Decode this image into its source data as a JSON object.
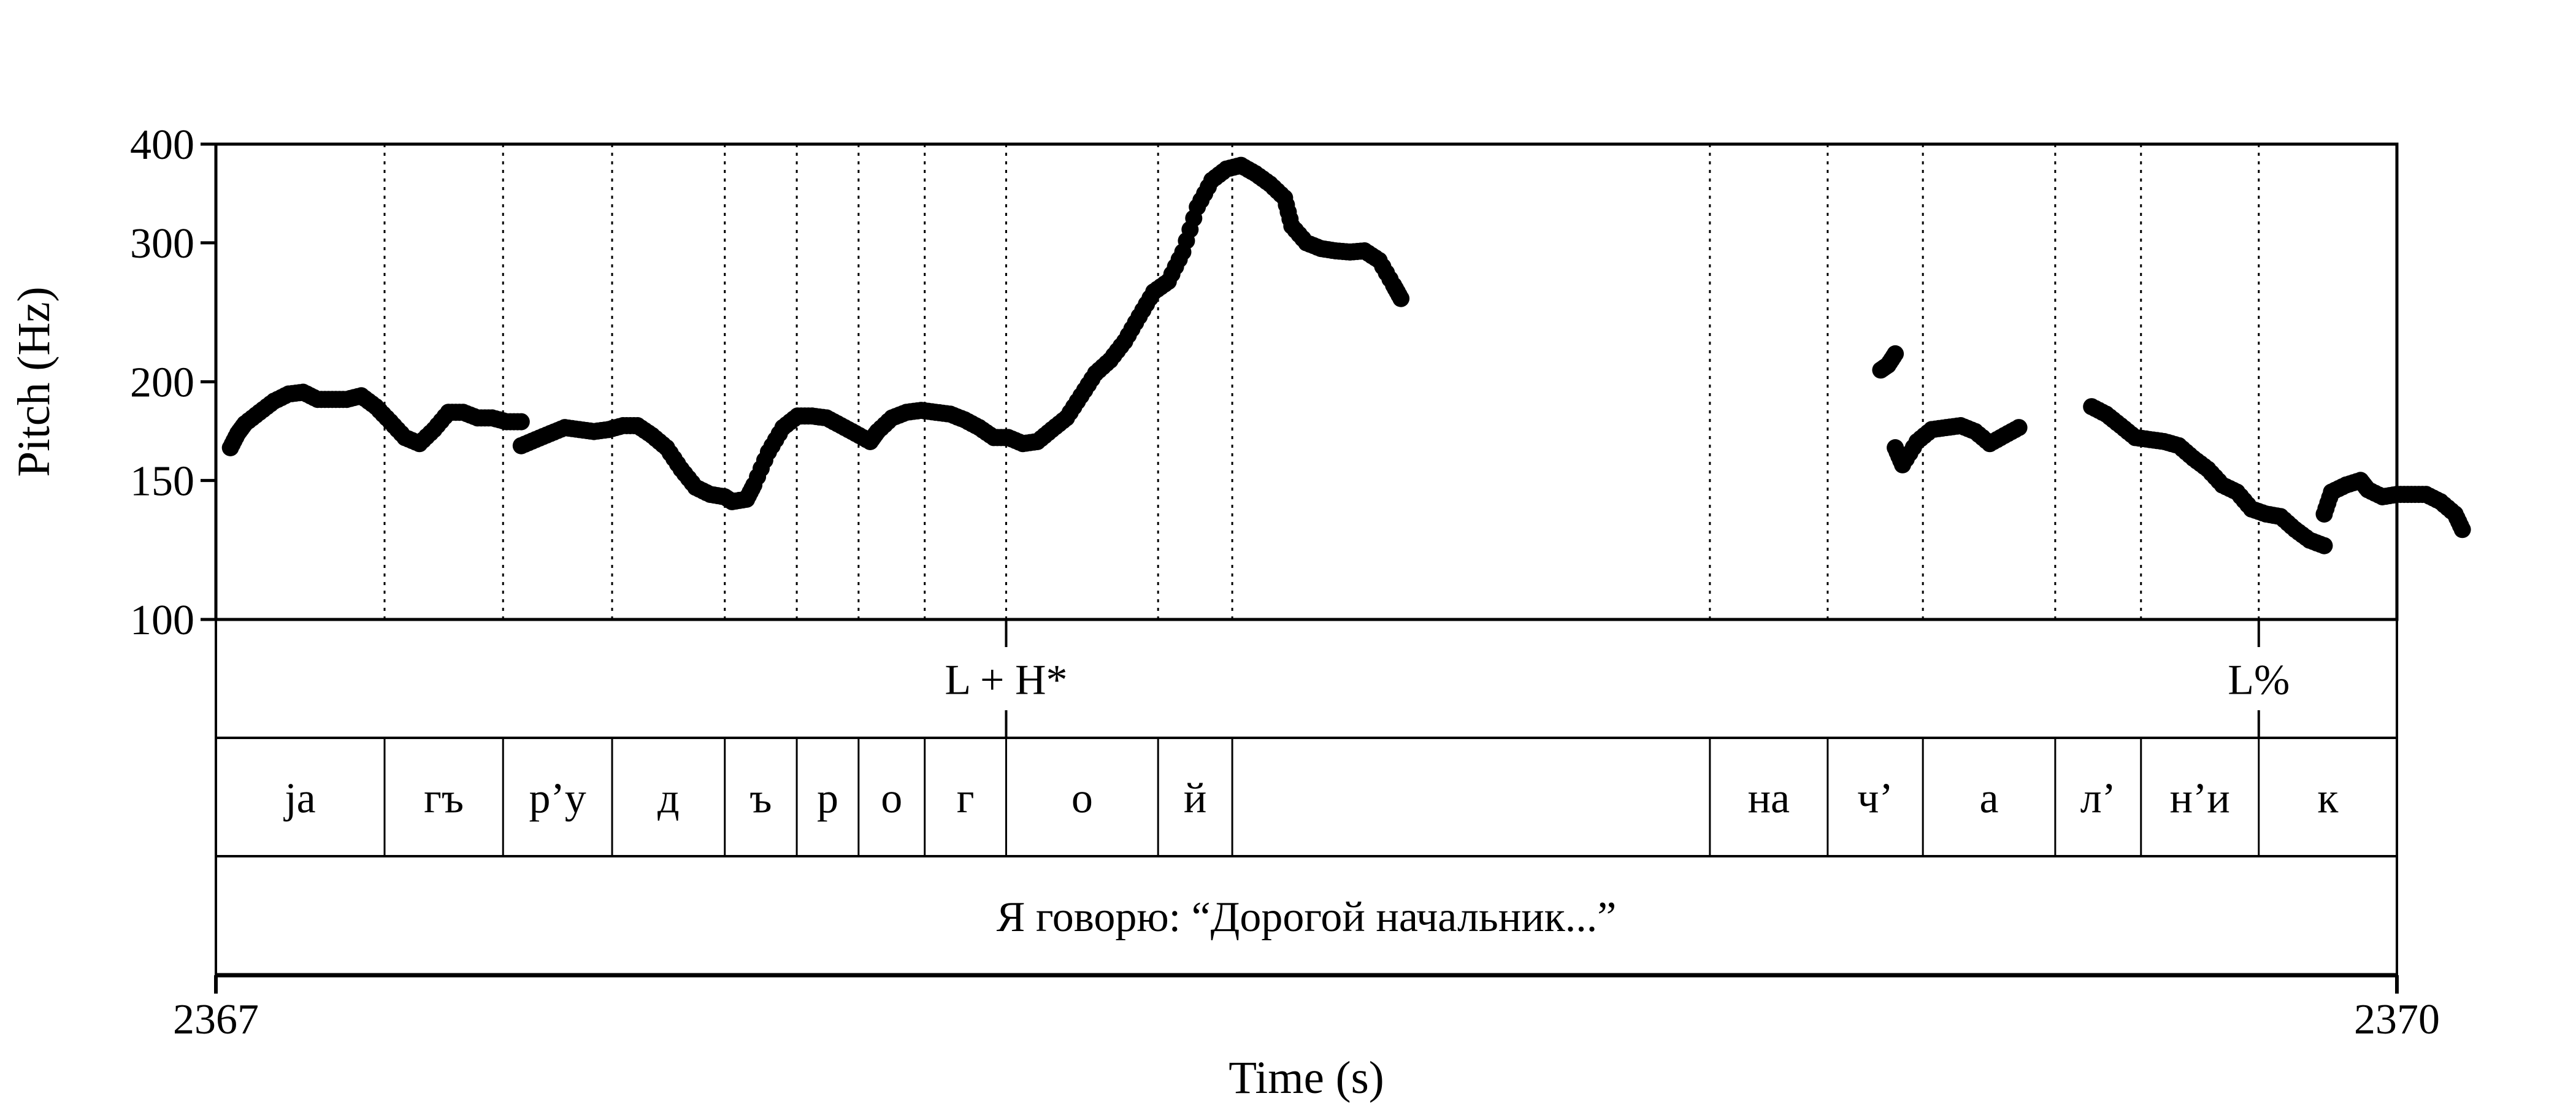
{
  "chart_data": {
    "type": "scatter",
    "title": "",
    "xlabel": "Time (s)",
    "ylabel": "Pitch (Hz)",
    "xlim": [
      2367,
      2370
    ],
    "ylim": [
      100,
      400
    ],
    "yscale": "log",
    "yticks": [
      100,
      150,
      200,
      300,
      400
    ],
    "ytick_labels": [
      "100",
      "150",
      "200",
      "300",
      "400"
    ],
    "xtick_labels": [
      "2367",
      "2370"
    ],
    "grid": false,
    "pitch_segments": [
      [
        [
          2367.02,
          165
        ],
        [
          2367.03,
          172
        ],
        [
          2367.04,
          177
        ],
        [
          2367.06,
          183
        ],
        [
          2367.08,
          189
        ],
        [
          2367.1,
          193
        ],
        [
          2367.12,
          194
        ],
        [
          2367.14,
          190
        ],
        [
          2367.16,
          190
        ],
        [
          2367.18,
          190
        ],
        [
          2367.2,
          192
        ],
        [
          2367.22,
          186
        ],
        [
          2367.24,
          178
        ],
        [
          2367.26,
          170
        ],
        [
          2367.28,
          167
        ],
        [
          2367.3,
          174
        ],
        [
          2367.32,
          183
        ],
        [
          2367.34,
          183
        ],
        [
          2367.36,
          180
        ],
        [
          2367.38,
          180
        ],
        [
          2367.4,
          178
        ],
        [
          2367.42,
          178
        ]
      ],
      [
        [
          2367.42,
          166
        ],
        [
          2367.44,
          169
        ],
        [
          2367.46,
          172
        ],
        [
          2367.48,
          175
        ],
        [
          2367.5,
          174
        ],
        [
          2367.52,
          173
        ],
        [
          2367.54,
          174
        ],
        [
          2367.56,
          176
        ],
        [
          2367.58,
          176
        ],
        [
          2367.6,
          171
        ],
        [
          2367.62,
          165
        ],
        [
          2367.64,
          155
        ],
        [
          2367.66,
          147
        ],
        [
          2367.68,
          144
        ],
        [
          2367.7,
          143
        ],
        [
          2367.71,
          141
        ],
        [
          2367.73,
          142
        ],
        [
          2367.74,
          148
        ],
        [
          2367.76,
          163
        ],
        [
          2367.78,
          175
        ],
        [
          2367.8,
          181
        ],
        [
          2367.82,
          181
        ],
        [
          2367.84,
          180
        ],
        [
          2367.86,
          176
        ],
        [
          2367.88,
          172
        ],
        [
          2367.9,
          168
        ],
        [
          2367.91,
          173
        ],
        [
          2367.93,
          180
        ],
        [
          2367.95,
          183
        ],
        [
          2367.97,
          184
        ],
        [
          2367.99,
          183
        ],
        [
          2368.01,
          182
        ],
        [
          2368.03,
          179
        ],
        [
          2368.05,
          175
        ],
        [
          2368.07,
          170
        ],
        [
          2368.09,
          170
        ],
        [
          2368.11,
          167
        ],
        [
          2368.13,
          168
        ],
        [
          2368.15,
          174
        ],
        [
          2368.17,
          180
        ],
        [
          2368.19,
          192
        ],
        [
          2368.21,
          205
        ],
        [
          2368.23,
          213
        ],
        [
          2368.25,
          225
        ],
        [
          2368.27,
          242
        ],
        [
          2368.29,
          260
        ],
        [
          2368.31,
          268
        ],
        [
          2368.33,
          292
        ],
        [
          2368.35,
          333
        ],
        [
          2368.37,
          360
        ],
        [
          2368.39,
          372
        ],
        [
          2368.41,
          376
        ],
        [
          2368.43,
          367
        ],
        [
          2368.45,
          356
        ],
        [
          2368.47,
          342
        ],
        [
          2368.48,
          315
        ],
        [
          2368.5,
          300
        ],
        [
          2368.52,
          295
        ],
        [
          2368.54,
          293
        ],
        [
          2368.56,
          292
        ],
        [
          2368.58,
          293
        ],
        [
          2368.6,
          285
        ],
        [
          2368.62,
          265
        ],
        [
          2368.63,
          255
        ]
      ],
      [
        [
          2369.29,
          207
        ],
        [
          2369.3,
          210
        ],
        [
          2369.31,
          217
        ]
      ],
      [
        [
          2369.31,
          165
        ],
        [
          2369.32,
          157
        ],
        [
          2369.34,
          168
        ],
        [
          2369.36,
          174
        ],
        [
          2369.38,
          175
        ],
        [
          2369.4,
          176
        ],
        [
          2369.42,
          173
        ],
        [
          2369.44,
          167
        ],
        [
          2369.46,
          171
        ],
        [
          2369.48,
          175
        ]
      ],
      [
        [
          2369.58,
          186
        ],
        [
          2369.6,
          182
        ],
        [
          2369.62,
          176
        ],
        [
          2369.64,
          170
        ],
        [
          2369.66,
          169
        ],
        [
          2369.68,
          168
        ],
        [
          2369.7,
          166
        ],
        [
          2369.72,
          160
        ],
        [
          2369.74,
          155
        ],
        [
          2369.76,
          148
        ],
        [
          2369.78,
          145
        ],
        [
          2369.8,
          138
        ],
        [
          2369.82,
          136
        ],
        [
          2369.84,
          135
        ],
        [
          2369.86,
          130
        ],
        [
          2369.88,
          126
        ],
        [
          2369.9,
          124
        ]
      ],
      [
        [
          2369.9,
          136
        ],
        [
          2369.91,
          145
        ],
        [
          2369.93,
          148
        ],
        [
          2369.95,
          150
        ],
        [
          2369.96,
          146
        ],
        [
          2369.98,
          143
        ],
        [
          2370.0,
          144
        ],
        [
          2370.02,
          144
        ],
        [
          2370.04,
          144
        ],
        [
          2370.06,
          141
        ],
        [
          2370.08,
          136
        ],
        [
          2370.09,
          130
        ]
      ]
    ],
    "boundaries": [
      2367.232,
      2367.395,
      2367.545,
      2367.7,
      2367.799,
      2367.884,
      2367.975,
      2368.087,
      2368.296,
      2368.398,
      2369.055,
      2369.217,
      2369.348,
      2369.53,
      2369.648,
      2369.81
    ],
    "tiers": [
      {
        "name": "tones",
        "labels": [
          {
            "text": "L + H*",
            "time": 2368.087
          },
          {
            "text": "L%",
            "time": 2369.81
          }
        ]
      },
      {
        "name": "segments",
        "labels": [
          {
            "text": "ja",
            "start": 2367.0,
            "end": 2367.232
          },
          {
            "text": "гъ",
            "start": 2367.232,
            "end": 2367.395
          },
          {
            "text": "р’у",
            "start": 2367.395,
            "end": 2367.545
          },
          {
            "text": "д",
            "start": 2367.545,
            "end": 2367.7
          },
          {
            "text": "ъ",
            "start": 2367.7,
            "end": 2367.799
          },
          {
            "text": "р",
            "start": 2367.799,
            "end": 2367.884
          },
          {
            "text": "о",
            "start": 2367.884,
            "end": 2367.975
          },
          {
            "text": "г",
            "start": 2367.975,
            "end": 2368.087
          },
          {
            "text": "о",
            "start": 2368.087,
            "end": 2368.296
          },
          {
            "text": "й",
            "start": 2368.296,
            "end": 2368.398
          },
          {
            "text": "",
            "start": 2368.398,
            "end": 2369.055
          },
          {
            "text": "на",
            "start": 2369.055,
            "end": 2369.217
          },
          {
            "text": "ч’",
            "start": 2369.217,
            "end": 2369.348
          },
          {
            "text": "а",
            "start": 2369.348,
            "end": 2369.53
          },
          {
            "text": "л’",
            "start": 2369.53,
            "end": 2369.648
          },
          {
            "text": "н’и",
            "start": 2369.648,
            "end": 2369.81
          },
          {
            "text": "к",
            "start": 2369.81,
            "end": 2370.0
          }
        ]
      },
      {
        "name": "sentence",
        "labels": [
          {
            "text": "Я говорю: “Дорогой начальник...”",
            "start": 2367.0,
            "end": 2370.0
          }
        ]
      }
    ]
  }
}
